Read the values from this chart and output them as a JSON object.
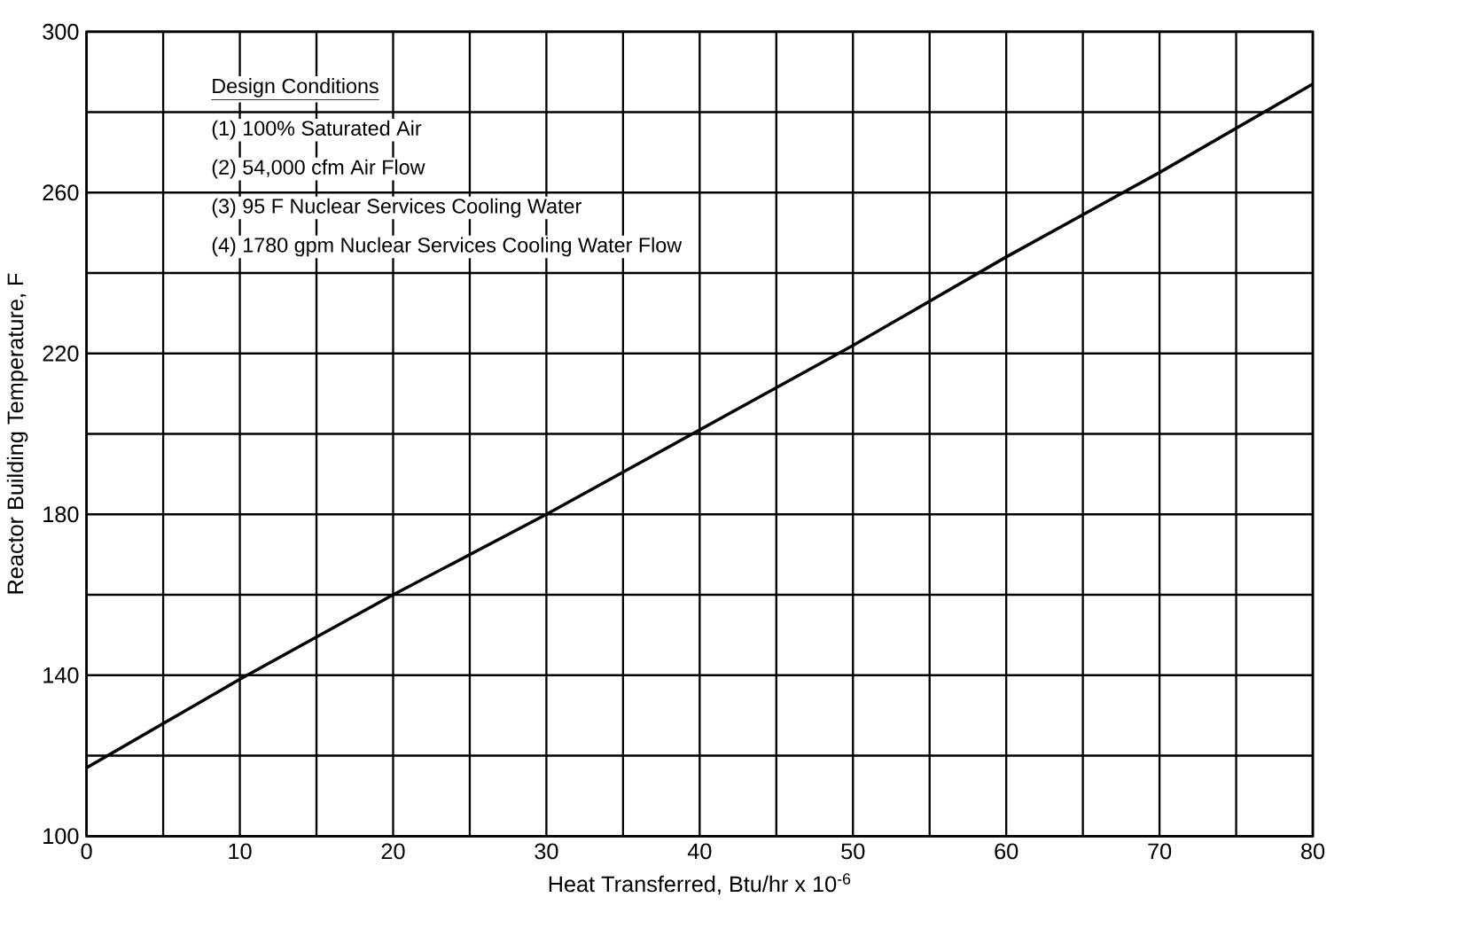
{
  "chart_data": {
    "type": "line",
    "xlabel": "Heat Transferred, Btu/hr x 10$^{-6}$",
    "ylabel": "Reactor Building Temperature, F",
    "annotations": [
      "Design Conditions",
      "(1) 100% Saturated Air",
      "(2) 54,000 cfm Air Flow",
      "(3) 95 F Nuclear Services Cooling Water",
      "(4) 1780 gpm Nuclear Services Cooling Water Flow"
    ],
    "x": [
      0,
      10,
      20,
      30,
      40,
      50,
      60,
      70,
      80
    ],
    "values": [
      117,
      139,
      160,
      180,
      201,
      222,
      244,
      265,
      287
    ],
    "color": "#000000",
    "xlim": [
      0,
      80
    ],
    "ylim": [
      100,
      300
    ],
    "xticks": [
      0,
      {
        "value": 5,
        "label": null
      },
      10,
      {
        "value": 15,
        "label": null
      },
      20,
      {
        "value": 25,
        "label": null
      },
      30,
      {
        "value": 35,
        "label": null
      },
      40,
      {
        "value": 45,
        "label": null
      },
      50,
      {
        "value": 55,
        "label": null
      },
      60,
      {
        "value": 65,
        "label": null
      },
      70,
      {
        "value": 75,
        "label": null
      },
      80
    ],
    "yticks": [
      100,
      {
        "value": 120,
        "label": null
      },
      140,
      {
        "value": 160,
        "label": null
      },
      180,
      {
        "value": 200,
        "label": null
      },
      220,
      {
        "value": 240,
        "label": null
      },
      260,
      {
        "value": 280,
        "label": null
      },
      300
    ],
    "grid": true,
    "marker": "none",
    "line_style": "solid"
  }
}
